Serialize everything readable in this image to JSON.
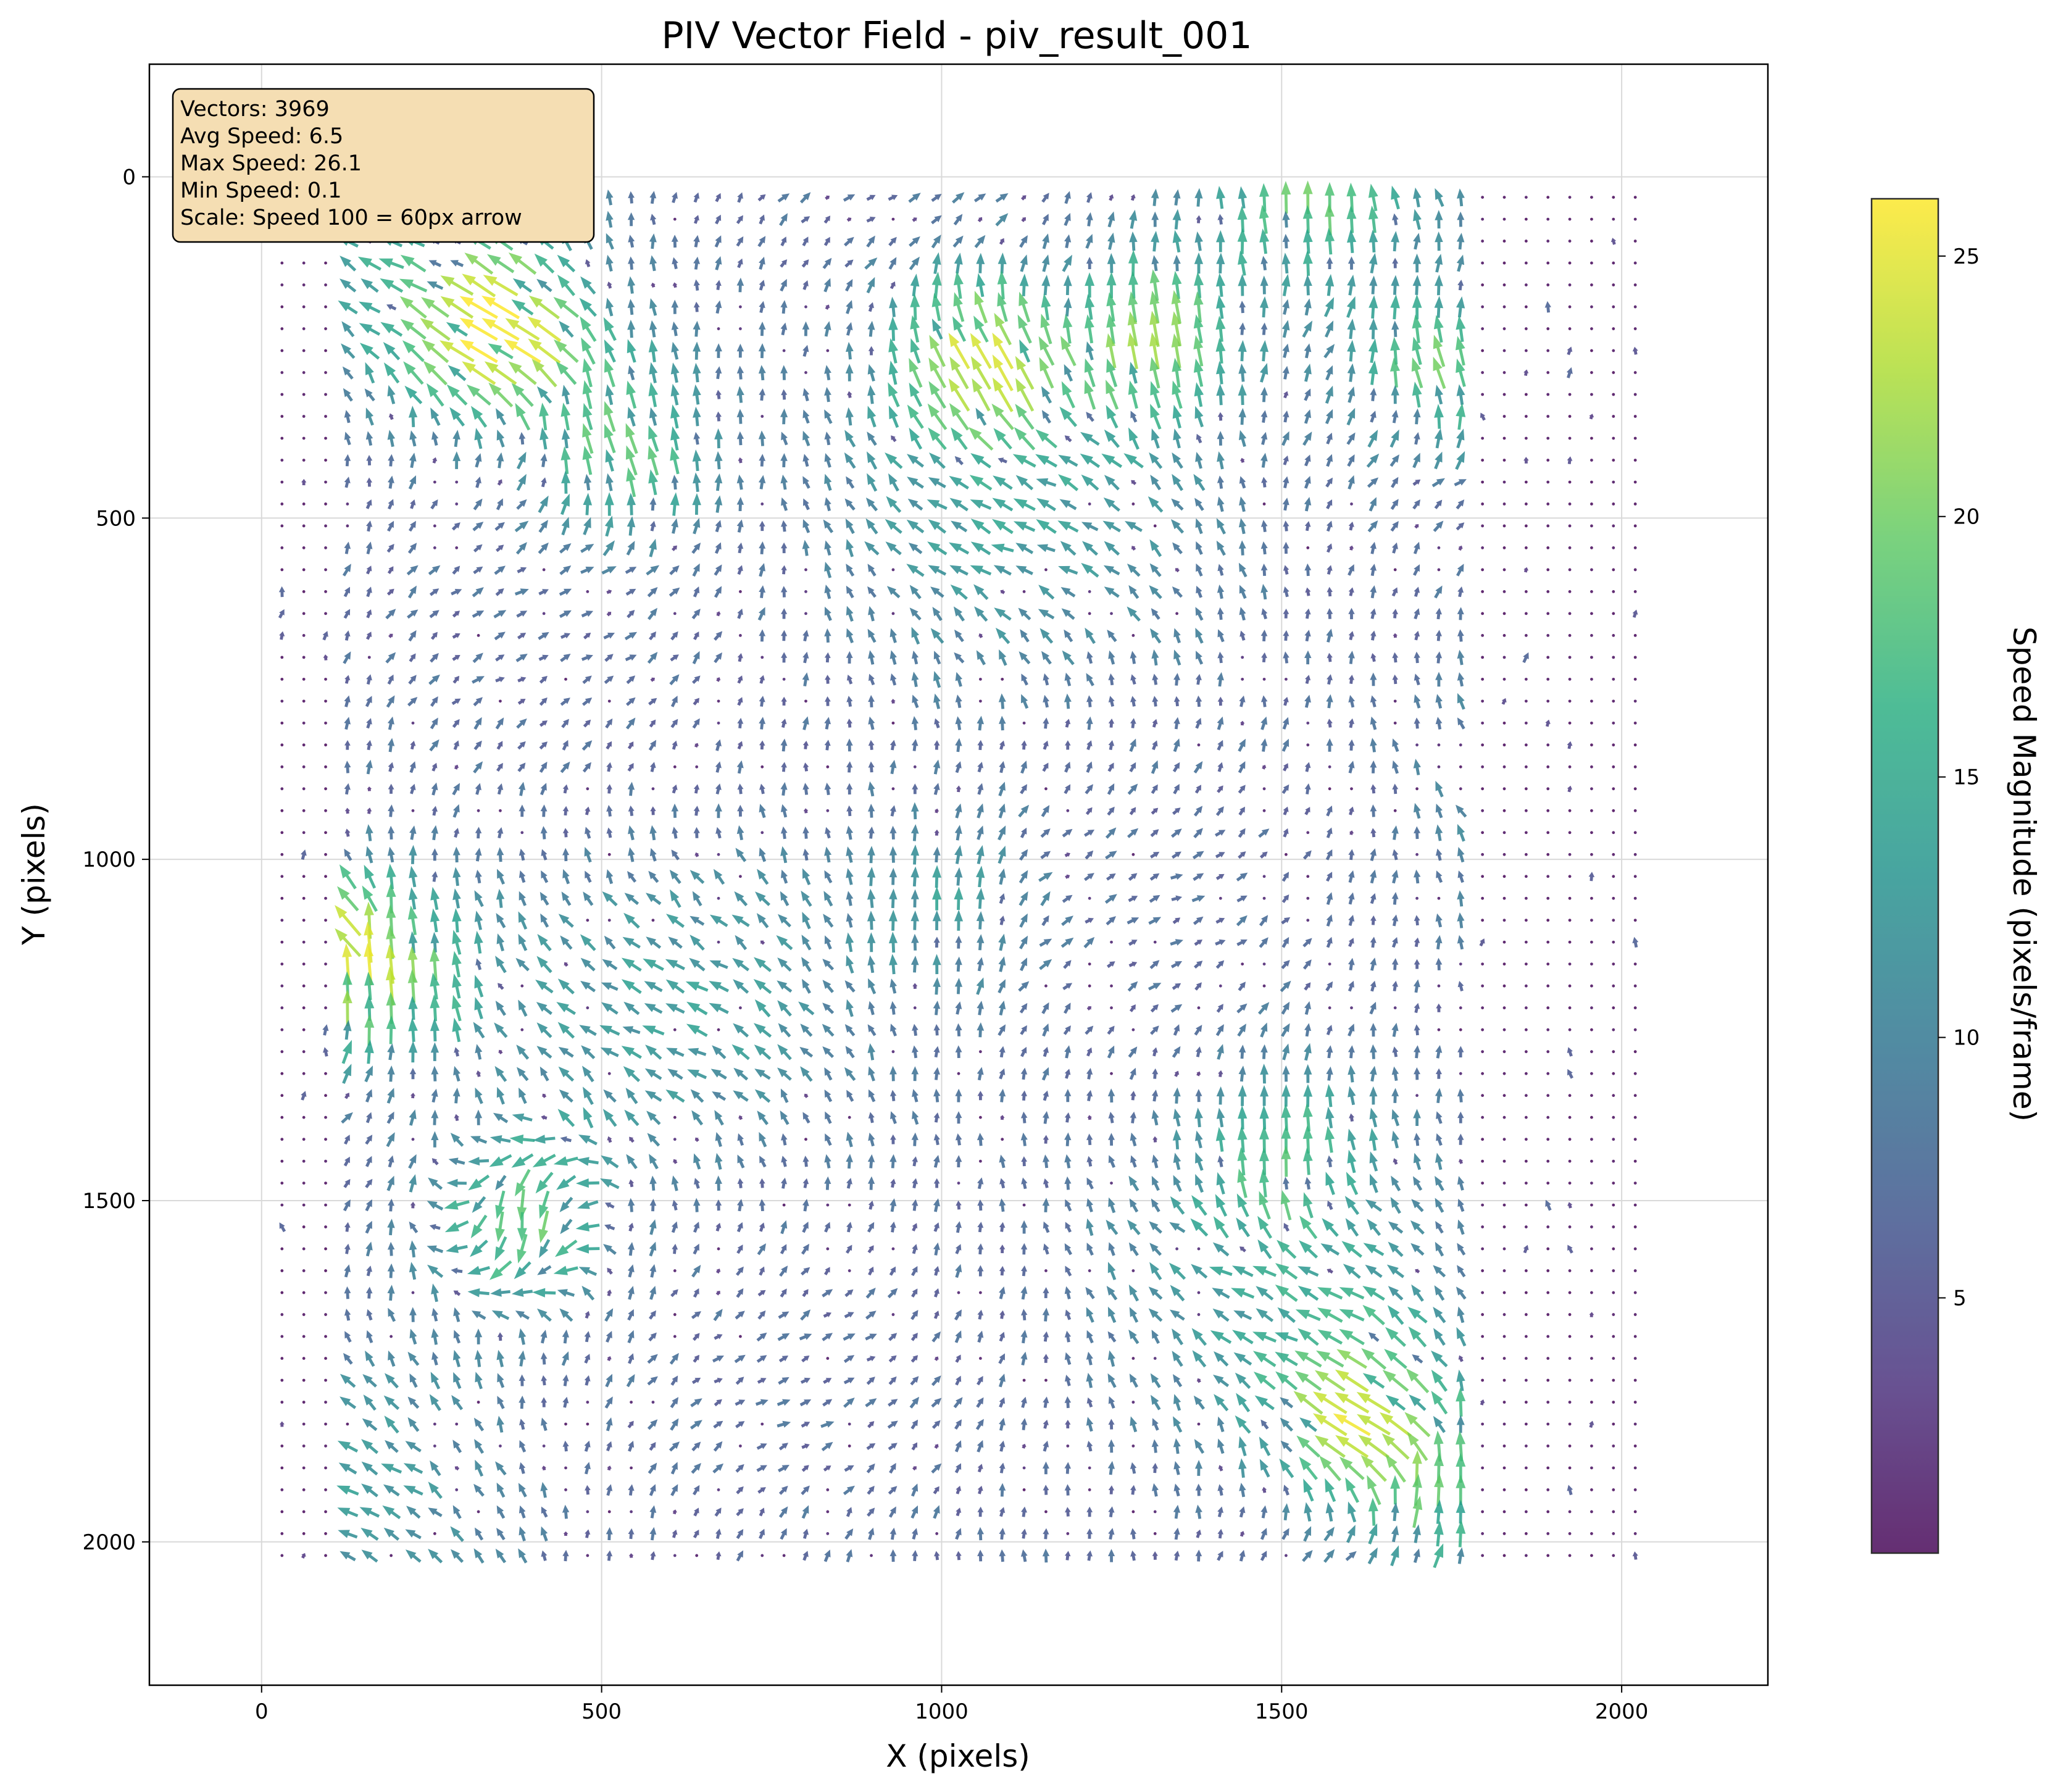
{
  "chart_data": {
    "type": "quiver",
    "title": "PIV Vector Field - piv_result_001",
    "xlabel": "X (pixels)",
    "ylabel": "Y (pixels)",
    "xlim": [
      -165,
      2215
    ],
    "ylim": [
      2210,
      -165
    ],
    "y_inverted": true,
    "xticks": [
      0,
      500,
      1000,
      1500,
      2000
    ],
    "yticks": [
      0,
      500,
      1000,
      1500,
      2000
    ],
    "grid": true,
    "colorbar": {
      "label": "Speed Magnitude (pixels/frame)",
      "colormap": "viridis",
      "alpha": 0.8,
      "range": [
        0.1,
        26.1
      ],
      "ticks": [
        5,
        10,
        15,
        20,
        25
      ]
    },
    "info_box": {
      "lines": [
        "Vectors: 3969",
        "Avg Speed: 6.5",
        "Max Speed: 26.1",
        "Min Speed: 0.1",
        "Scale: Speed 100 = 60px arrow"
      ],
      "position": "top-left",
      "background": "#f5deb3"
    },
    "vectors": {
      "count": 3969,
      "grid_shape": [
        63,
        63
      ],
      "x_range": [
        30,
        2020
      ],
      "y_range": [
        30,
        2020
      ],
      "avg_speed": 6.5,
      "max_speed": 26.1,
      "min_speed": 0.1,
      "scale_note": "Speed 100 = 60px arrow",
      "active_region": {
        "x": [
          110,
          1790
        ],
        "y": [
          30,
          2020
        ]
      },
      "dominant_direction": "up",
      "fast_regions": [
        {
          "x": 340,
          "y": 230,
          "speed": 24,
          "angle_deg": 150
        },
        {
          "x": 1050,
          "y": 260,
          "speed": 24,
          "angle_deg": 120
        },
        {
          "x": 1320,
          "y": 230,
          "speed": 22,
          "angle_deg": 100
        },
        {
          "x": 540,
          "y": 390,
          "speed": 20,
          "angle_deg": 110
        },
        {
          "x": 1730,
          "y": 280,
          "speed": 20,
          "angle_deg": 110
        },
        {
          "x": 180,
          "y": 1170,
          "speed": 21,
          "angle_deg": 95
        },
        {
          "x": 380,
          "y": 1530,
          "speed": 20,
          "angle_deg": 270
        },
        {
          "x": 1610,
          "y": 1820,
          "speed": 23,
          "angle_deg": 150
        },
        {
          "x": 1550,
          "y": 20,
          "speed": 19,
          "angle_deg": 90
        },
        {
          "x": 1780,
          "y": 1940,
          "speed": 19,
          "angle_deg": 90
        },
        {
          "x": 1000,
          "y": 1070,
          "speed": 14,
          "angle_deg": 90
        },
        {
          "x": 1500,
          "y": 1420,
          "speed": 16,
          "angle_deg": 90
        },
        {
          "x": 60,
          "y": 1100,
          "speed": 18,
          "angle_deg": 145
        }
      ]
    }
  }
}
